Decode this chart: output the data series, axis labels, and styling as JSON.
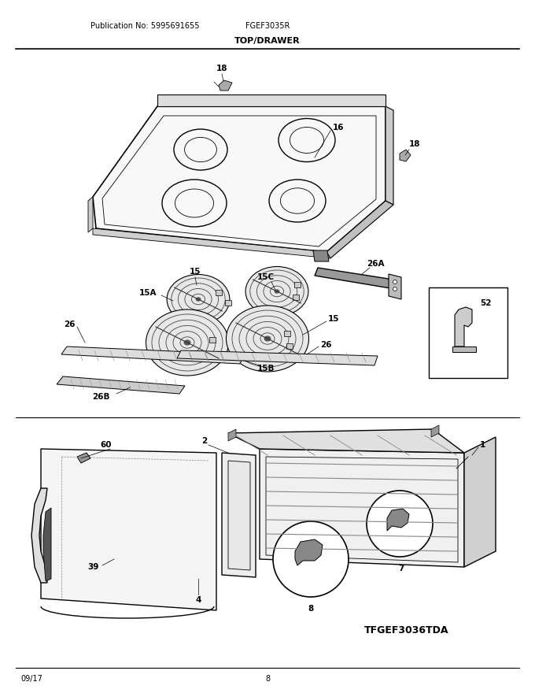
{
  "publication_no": "Publication No: 5995691655",
  "model": "FGEF3035R",
  "section_title": "TOP/DRAWER",
  "date": "09/17",
  "page": "8",
  "sub_model": "TFGEF3036TDA",
  "bg_color": "#ffffff",
  "line_color": "#000000"
}
